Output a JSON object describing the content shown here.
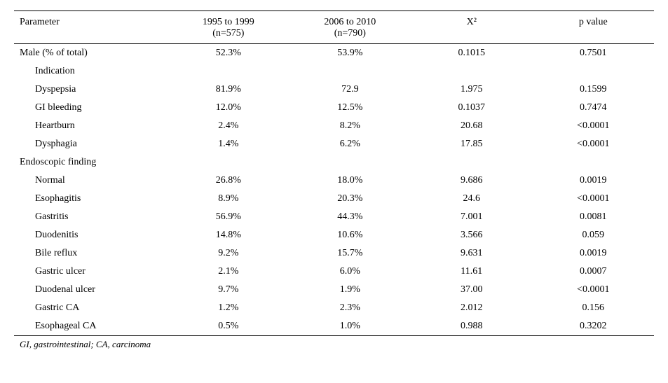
{
  "columns": {
    "c0": "Parameter",
    "c1_line1": "1995 to 1999",
    "c1_line2": "(n=575)",
    "c2_line1": "2006 to 2010",
    "c2_line2": "(n=790)",
    "c3": "X²",
    "c4": "p value"
  },
  "rows": [
    {
      "indent": 0,
      "label": "Male (% of total)",
      "v1": "52.3%",
      "v2": "53.9%",
      "v3": "0.1015",
      "v4": "0.7501"
    },
    {
      "indent": 1,
      "label": "Indication",
      "v1": "",
      "v2": "",
      "v3": "",
      "v4": ""
    },
    {
      "indent": 1,
      "label": "Dyspepsia",
      "v1": "81.9%",
      "v2": "72.9",
      "v3": "1.975",
      "v4": "0.1599"
    },
    {
      "indent": 1,
      "label": "GI bleeding",
      "v1": "12.0%",
      "v2": "12.5%",
      "v3": "0.1037",
      "v4": "0.7474"
    },
    {
      "indent": 1,
      "label": "Heartburn",
      "v1": "2.4%",
      "v2": "8.2%",
      "v3": "20.68",
      "v4": "<0.0001"
    },
    {
      "indent": 1,
      "label": "Dysphagia",
      "v1": "1.4%",
      "v2": "6.2%",
      "v3": "17.85",
      "v4": "<0.0001"
    },
    {
      "indent": 0,
      "label": "Endoscopic finding",
      "v1": "",
      "v2": "",
      "v3": "",
      "v4": ""
    },
    {
      "indent": 1,
      "label": "Normal",
      "v1": "26.8%",
      "v2": "18.0%",
      "v3": "9.686",
      "v4": "0.0019"
    },
    {
      "indent": 1,
      "label": "Esophagitis",
      "v1": "8.9%",
      "v2": "20.3%",
      "v3": "24.6",
      "v4": "<0.0001"
    },
    {
      "indent": 1,
      "label": "Gastritis",
      "v1": "56.9%",
      "v2": "44.3%",
      "v3": "7.001",
      "v4": "0.0081"
    },
    {
      "indent": 1,
      "label": "Duodenitis",
      "v1": "14.8%",
      "v2": "10.6%",
      "v3": "3.566",
      "v4": "0.059"
    },
    {
      "indent": 1,
      "label": "Bile reflux",
      "v1": "9.2%",
      "v2": "15.7%",
      "v3": "9.631",
      "v4": "0.0019"
    },
    {
      "indent": 1,
      "label": "Gastric ulcer",
      "v1": "2.1%",
      "v2": "6.0%",
      "v3": "11.61",
      "v4": "0.0007"
    },
    {
      "indent": 1,
      "label": "Duodenal ulcer",
      "v1": "9.7%",
      "v2": "1.9%",
      "v3": "37.00",
      "v4": "<0.0001"
    },
    {
      "indent": 1,
      "label": "Gastric CA",
      "v1": "1.2%",
      "v2": "2.3%",
      "v3": "2.012",
      "v4": "0.156"
    },
    {
      "indent": 1,
      "label": "Esophageal CA",
      "v1": "0.5%",
      "v2": "1.0%",
      "v3": "0.988",
      "v4": "0.3202"
    }
  ],
  "footnote": "GI, gastrointestinal; CA, carcinoma",
  "col_widths": [
    "24%",
    "19%",
    "19%",
    "19%",
    "19%"
  ]
}
